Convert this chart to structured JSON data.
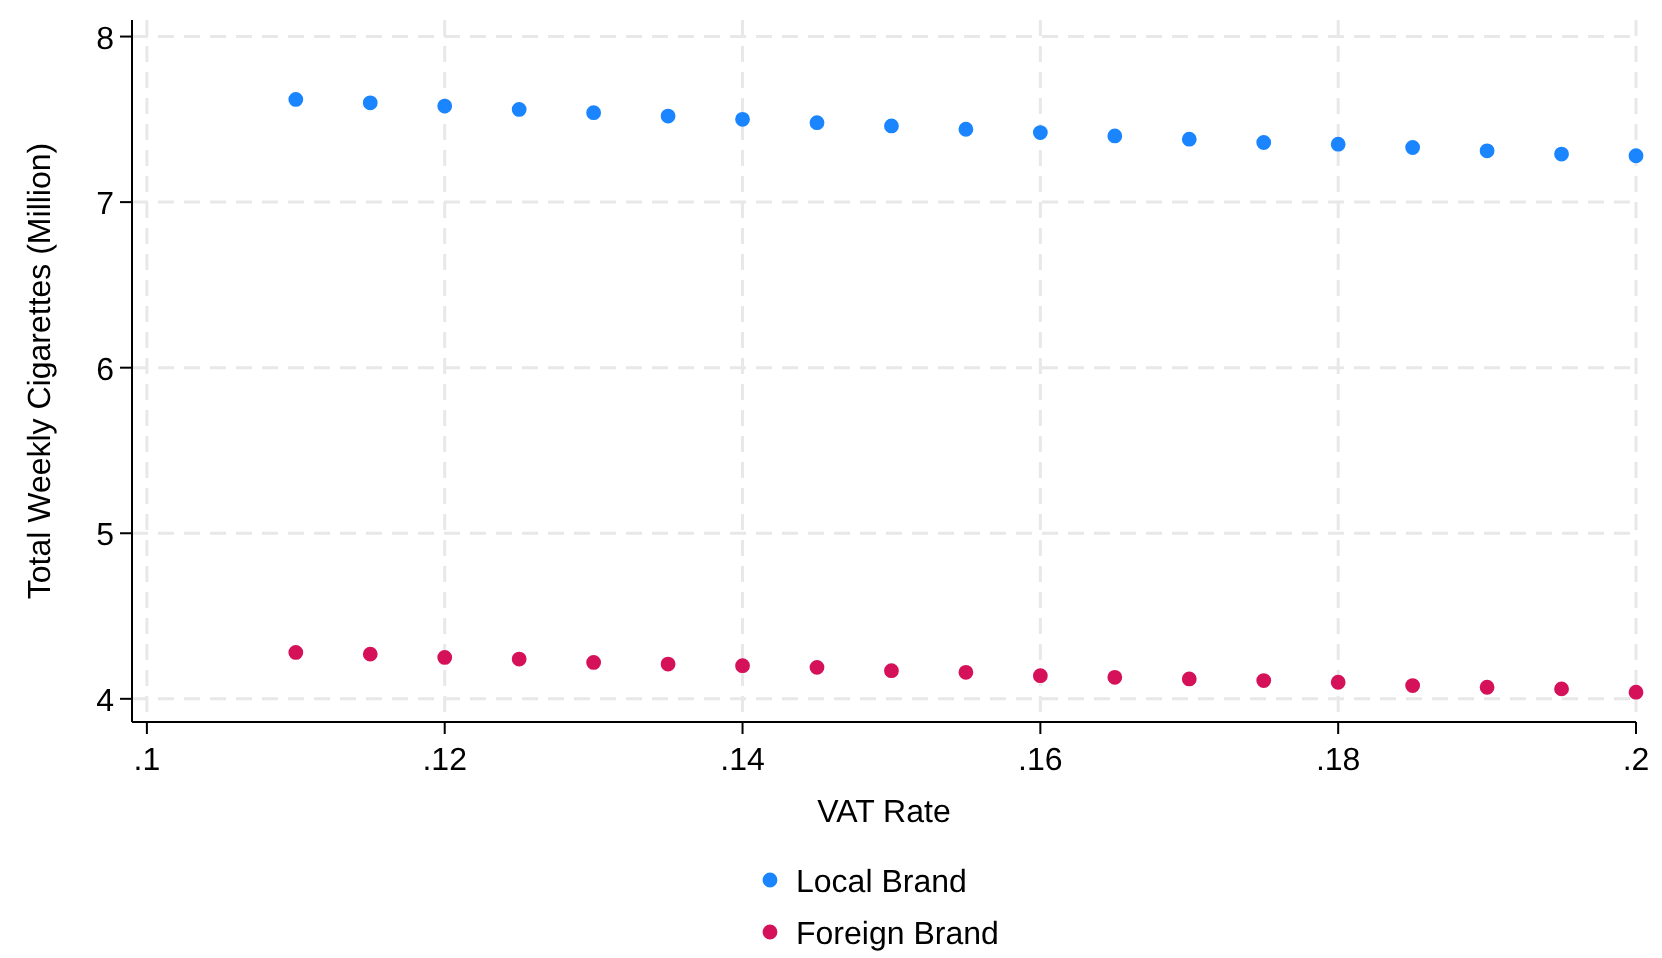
{
  "chart_data": {
    "type": "scatter",
    "xlabel": "VAT Rate",
    "ylabel": "Total Weekly Cigarettes (Million)",
    "x": [
      0.11,
      0.115,
      0.12,
      0.125,
      0.13,
      0.135,
      0.14,
      0.145,
      0.15,
      0.155,
      0.16,
      0.165,
      0.17,
      0.175,
      0.18,
      0.185,
      0.19,
      0.195,
      0.2
    ],
    "series": [
      {
        "name": "Local Brand",
        "color": "#1a85ff",
        "values": [
          7.62,
          7.6,
          7.58,
          7.56,
          7.54,
          7.52,
          7.5,
          7.48,
          7.46,
          7.44,
          7.42,
          7.4,
          7.38,
          7.36,
          7.35,
          7.33,
          7.31,
          7.29,
          7.28
        ]
      },
      {
        "name": "Foreign Brand",
        "color": "#d41159",
        "values": [
          4.28,
          4.27,
          4.25,
          4.24,
          4.22,
          4.21,
          4.2,
          4.19,
          4.17,
          4.16,
          4.14,
          4.13,
          4.12,
          4.11,
          4.1,
          4.08,
          4.07,
          4.06,
          4.04
        ]
      }
    ],
    "xlim": [
      0.099,
      0.2
    ],
    "ylim": [
      3.86,
      8.1
    ],
    "xticks": [
      {
        "value": 0.1,
        "label": ".1"
      },
      {
        "value": 0.12,
        "label": ".12"
      },
      {
        "value": 0.14,
        "label": ".14"
      },
      {
        "value": 0.16,
        "label": ".16"
      },
      {
        "value": 0.18,
        "label": ".18"
      },
      {
        "value": 0.2,
        "label": ".2"
      }
    ],
    "yticks": [
      4,
      5,
      6,
      7,
      8
    ],
    "grid": true,
    "legend": "bottom",
    "marker": "circle"
  }
}
